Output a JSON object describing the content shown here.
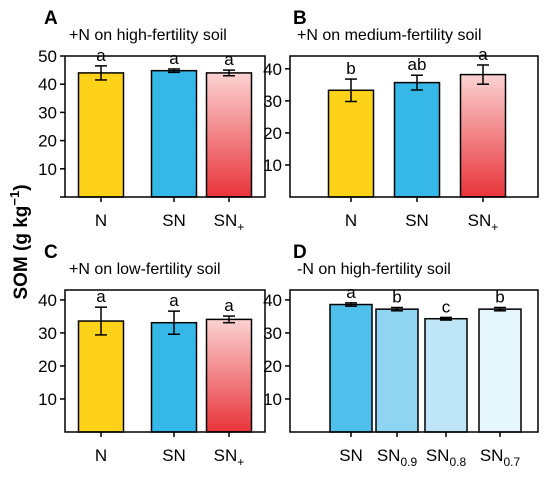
{
  "y_axis_label": {
    "main": "SOM (g kg",
    "sup": "−1",
    "close": ")"
  },
  "chart_data": [
    {
      "type": "bar",
      "panel": "A",
      "title": "+N on high-fertility soil",
      "categories": [
        {
          "base": "N",
          "sub": ""
        },
        {
          "base": "SN",
          "sub": ""
        },
        {
          "base": "SN",
          "sub": "+"
        }
      ],
      "values": [
        44,
        44.8,
        44
      ],
      "errors": [
        2.5,
        0.6,
        1.0
      ],
      "letters": [
        "a",
        "a",
        "a"
      ],
      "colors": [
        "yellow",
        "blue",
        "red"
      ],
      "ylim": [
        0,
        50
      ],
      "yticks": [
        0,
        10,
        20,
        30,
        40,
        50
      ],
      "ytick_labels": [
        "",
        "10",
        "20",
        "30",
        "40",
        "50"
      ]
    },
    {
      "type": "bar",
      "panel": "B",
      "title": "+N on medium-fertility soil",
      "categories": [
        {
          "base": "N",
          "sub": ""
        },
        {
          "base": "SN",
          "sub": ""
        },
        {
          "base": "SN",
          "sub": "+"
        }
      ],
      "values": [
        33.3,
        35.7,
        38.2
      ],
      "errors": [
        3.5,
        2.3,
        3.0
      ],
      "letters": [
        "b",
        "ab",
        "a"
      ],
      "colors": [
        "yellow",
        "blue",
        "red"
      ],
      "ylim": [
        0,
        44
      ],
      "yticks": [
        10,
        20,
        30,
        40
      ],
      "ytick_labels": [
        "10",
        "20",
        "30",
        "40"
      ]
    },
    {
      "type": "bar",
      "panel": "C",
      "title": "+N on low-fertility soil",
      "categories": [
        {
          "base": "N",
          "sub": ""
        },
        {
          "base": "SN",
          "sub": ""
        },
        {
          "base": "SN",
          "sub": "+"
        }
      ],
      "values": [
        33.6,
        33.1,
        34.1
      ],
      "errors": [
        4.2,
        3.5,
        1.0
      ],
      "letters": [
        "a",
        "a",
        "a"
      ],
      "colors": [
        "yellow",
        "blue",
        "red"
      ],
      "ylim": [
        0,
        43
      ],
      "yticks": [
        10,
        20,
        30,
        40
      ],
      "ytick_labels": [
        "10",
        "20",
        "30",
        "40"
      ]
    },
    {
      "type": "bar",
      "panel": "D",
      "title": "-N on high-fertility soil",
      "categories": [
        {
          "base": "SN",
          "sub": ""
        },
        {
          "base": "SN",
          "sub": "0.9"
        },
        {
          "base": "SN",
          "sub": "0.8"
        },
        {
          "base": "SN",
          "sub": "0.7"
        }
      ],
      "values": [
        38.6,
        37.2,
        34.3,
        37.2
      ],
      "errors": [
        0.5,
        0.5,
        0.4,
        0.5
      ],
      "letters": [
        "a",
        "b",
        "c",
        "b"
      ],
      "colors": [
        "blue1",
        "blue2",
        "blue3",
        "blue4"
      ],
      "ylim": [
        0,
        43
      ],
      "yticks": [
        10,
        20,
        30,
        40
      ],
      "ytick_labels": [
        "10",
        "20",
        "30",
        "40"
      ]
    }
  ],
  "palette": {
    "yellow": "#FFD21A",
    "blue": "#35B7E8",
    "red_top": "#FBD2D2",
    "red_bottom": "#E8343A",
    "blue1": "#4FC0EC",
    "blue2": "#8FD5F2",
    "blue3": "#BEE6F8",
    "blue4": "#E6F6FD"
  }
}
